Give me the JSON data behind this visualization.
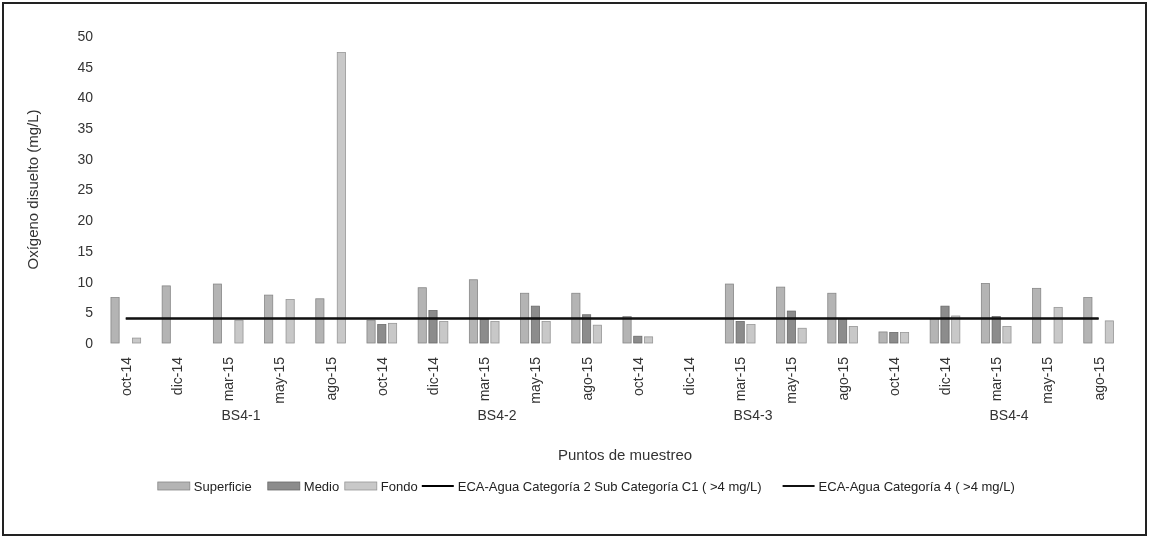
{
  "chart_data": {
    "type": "bar",
    "xlabel": "Puntos de muestreo",
    "ylabel": "Oxígeno disuelto (mg/L)",
    "categories": [
      "oct-14",
      null,
      "dic-14",
      null,
      "mar-15",
      null,
      "may-15",
      null,
      "ago-15",
      null,
      "oct-14",
      null,
      "dic-14",
      null,
      "mar-15",
      null,
      "may-15",
      null,
      "ago-15",
      null,
      "oct-14",
      null,
      "dic-14",
      null,
      "mar-15",
      null,
      "may-15",
      null,
      "ago-15",
      null,
      "oct-14",
      null,
      "dic-14",
      null,
      "mar-15",
      null,
      "may-15",
      null,
      "ago-15",
      null
    ],
    "series": [
      {
        "name": "Superficie",
        "color": "#b4b4b4",
        "values": [
          7.4,
          null,
          9.3,
          null,
          9.6,
          null,
          7.8,
          null,
          7.2,
          null,
          3.7,
          null,
          9.0,
          null,
          10.3,
          null,
          8.1,
          null,
          8.1,
          null,
          4.3,
          null,
          null,
          null,
          9.6,
          null,
          9.1,
          null,
          8.1,
          null,
          1.8,
          null,
          4.0,
          null,
          9.7,
          null,
          8.9,
          null,
          7.4,
          null
        ]
      },
      {
        "name": "Medio",
        "color": "#8c8c8c",
        "values": [
          null,
          null,
          null,
          null,
          null,
          null,
          null,
          null,
          null,
          null,
          3.0,
          null,
          5.3,
          null,
          3.9,
          null,
          6.0,
          null,
          4.6,
          null,
          1.1,
          null,
          null,
          null,
          3.5,
          null,
          5.2,
          null,
          4.0,
          null,
          1.7,
          null,
          6.0,
          null,
          4.3,
          null,
          null,
          null,
          null,
          null
        ]
      },
      {
        "name": "Fondo",
        "color": "#c8c8c8",
        "values": [
          0.8,
          null,
          null,
          null,
          3.7,
          null,
          7.1,
          null,
          47.3,
          null,
          3.2,
          null,
          3.5,
          null,
          3.5,
          null,
          3.5,
          null,
          2.9,
          null,
          1.0,
          null,
          null,
          null,
          3.0,
          null,
          2.4,
          null,
          2.7,
          null,
          1.7,
          null,
          4.4,
          null,
          2.7,
          null,
          5.8,
          null,
          3.6,
          null
        ]
      }
    ],
    "ylim": [
      0,
      50
    ],
    "yticks": [
      0,
      5,
      10,
      15,
      20,
      25,
      30,
      35,
      40,
      45,
      50
    ],
    "grid": false,
    "legend": "bottom",
    "ref_lines": [
      {
        "axis": "y",
        "value": 4,
        "label": "ECA-Agua Categoría 2 Sub Categoría C1 ( >4 mg/L)",
        "color": "#000000"
      },
      {
        "axis": "y",
        "value": 4,
        "label": "ECA-Agua Categoría 4 ( >4 mg/L)",
        "color": "#111111"
      }
    ],
    "annotations": [
      "BS4-1",
      "BS4-2",
      "BS4-3",
      "BS4-4"
    ]
  }
}
